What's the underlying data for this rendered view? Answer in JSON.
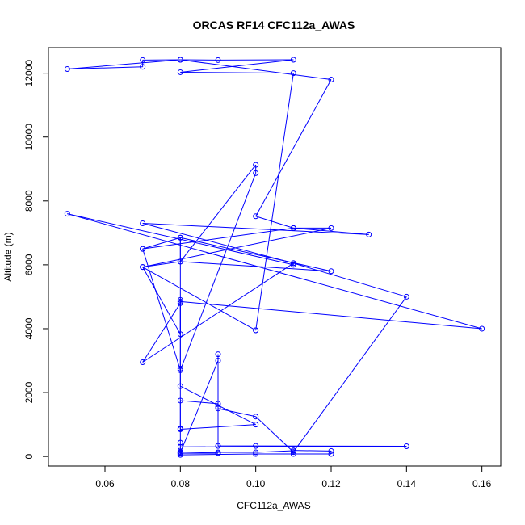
{
  "chart_data": {
    "type": "line",
    "title": "ORCAS RF14 CFC112a_AWAS",
    "xlabel": "CFC112a_AWAS",
    "ylabel": "Altitude (m)",
    "xlim": [
      0.045,
      0.165
    ],
    "ylim": [
      -300,
      12800
    ],
    "xticks": [
      0.06,
      0.08,
      0.1,
      0.12,
      0.14,
      0.16
    ],
    "xtick_labels": [
      "0.06",
      "0.08",
      "0.10",
      "0.12",
      "0.14",
      "0.16"
    ],
    "yticks": [
      0,
      2000,
      4000,
      6000,
      8000,
      10000,
      12000
    ],
    "yticklabels": [
      "0",
      "2000",
      "4000",
      "6000",
      "8000",
      "10000",
      "12000"
    ],
    "grid": false,
    "legend": "none",
    "colors": {
      "series": "#0000ff",
      "frame": "#000000"
    },
    "marker": "open-circle",
    "series": [
      {
        "x": [
          0.09,
          0.08,
          0.09,
          0.1,
          0.11,
          0.11,
          0.12,
          0.12,
          0.11,
          0.1,
          0.08,
          0.08,
          0.08,
          0.14,
          0.1,
          0.09,
          0.09,
          0.09,
          0.08,
          0.08,
          0.08,
          0.08,
          0.08,
          0.09,
          0.09,
          0.09,
          0.1,
          0.11,
          0.14,
          0.11,
          0.07,
          0.08,
          0.08,
          0.08,
          0.08,
          0.1,
          0.08,
          0.08,
          0.12,
          0.08,
          0.1,
          0.1,
          0.08,
          0.07,
          0.11,
          0.13,
          0.07,
          0.11,
          0.11,
          0.05,
          0.16,
          0.08,
          0.08,
          0.07,
          0.12,
          0.11,
          0.1,
          0.12,
          0.08,
          0.05,
          0.07,
          0.07,
          0.08,
          0.09,
          0.11,
          0.08,
          0.11,
          0.1,
          0.1,
          0.07,
          0.08,
          0.08,
          0.07
        ],
        "y": [
          100,
          100,
          130,
          130,
          180,
          190,
          170,
          80,
          80,
          80,
          50,
          150,
          300,
          320,
          330,
          330,
          1550,
          1650,
          1750,
          870,
          430,
          100,
          120,
          3000,
          3200,
          1500,
          1250,
          140,
          5000,
          6050,
          2950,
          4800,
          4900,
          2750,
          2200,
          1000,
          850,
          6850,
          5800,
          6100,
          9130,
          8870,
          2700,
          6500,
          7150,
          6950,
          7300,
          6050,
          6000,
          7600,
          4000,
          4850,
          3830,
          5930,
          7150,
          7150,
          7520,
          11800,
          12420,
          12130,
          12200,
          12410,
          12420,
          12410,
          12420,
          12030,
          12000,
          3950,
          3950,
          5930,
          6100,
          6850,
          6500
        ]
      }
    ]
  }
}
